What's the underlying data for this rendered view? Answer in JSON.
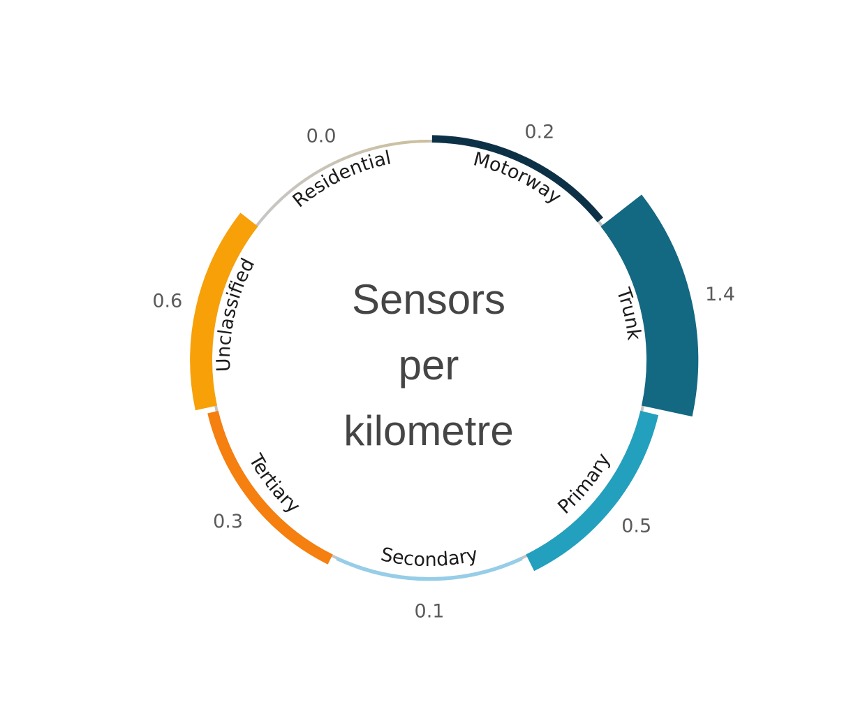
{
  "chart_data": {
    "type": "radial-bar",
    "title_lines": [
      "Sensors",
      "per",
      "kilometre"
    ],
    "categories": [
      "Motorway",
      "Trunk",
      "Primary",
      "Secondary",
      "Tertiary",
      "Unclassified",
      "Residential"
    ],
    "values": [
      0.2,
      1.4,
      0.5,
      0.1,
      0.3,
      0.6,
      0.0
    ],
    "value_labels": [
      "0.2",
      "1.4",
      "0.5",
      "0.1",
      "0.3",
      "0.6",
      "0.0"
    ],
    "colors": [
      "#0c3147",
      "#136882",
      "#23a0bd",
      "#96cde8",
      "#f57f0f",
      "#f7a008",
      "#cdbf9b"
    ],
    "ring_color": "#c4c4c4",
    "gradient_end_color": "#cdbf9b"
  }
}
